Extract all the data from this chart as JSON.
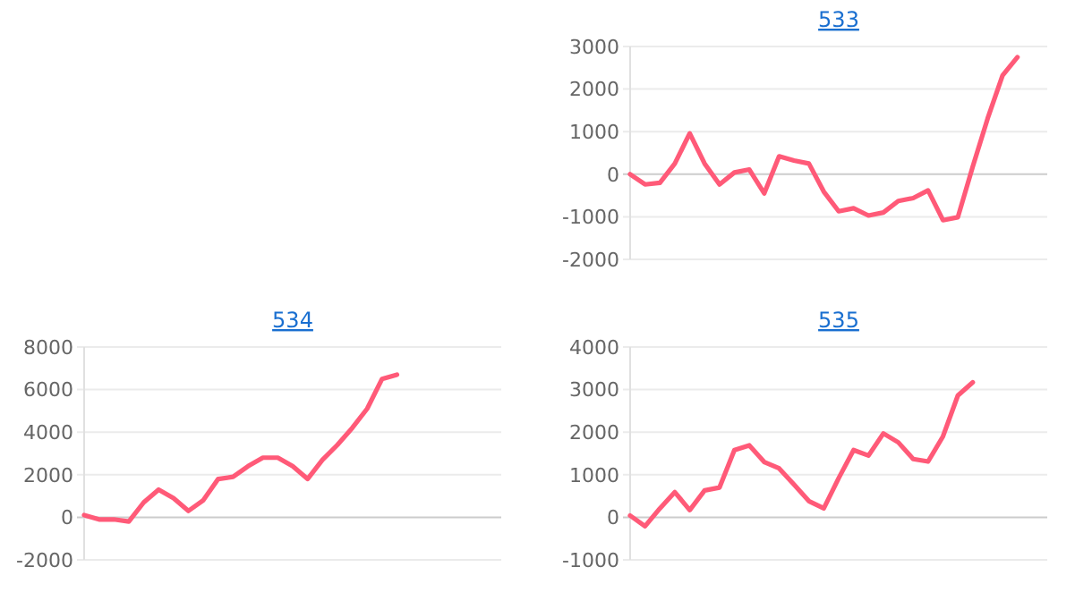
{
  "chart_data": [
    {
      "type": "line",
      "title": "533",
      "categories": [
        null,
        null,
        null,
        null,
        null,
        null,
        null,
        null,
        null,
        null,
        null,
        null,
        null,
        null,
        null,
        null,
        null,
        null,
        null,
        null,
        null,
        null,
        null,
        null,
        null,
        null,
        null,
        null,
        null
      ],
      "series": [
        {
          "color": "#ff5a78",
          "values": [
            0,
            -240,
            -200,
            250,
            960,
            250,
            -240,
            40,
            110,
            -450,
            420,
            320,
            250,
            -410,
            -870,
            -800,
            -970,
            -900,
            -630,
            -560,
            -380,
            -1080,
            -1010,
            180,
            1310,
            2320,
            2750,
            null,
            null
          ]
        }
      ],
      "ylim": [
        -2000,
        3000
      ],
      "yticks": [
        -2000,
        -1000,
        0,
        1000,
        2000,
        3000
      ],
      "grid": "y",
      "marker": "none",
      "line_style": "solid"
    },
    {
      "type": "line",
      "title": "534",
      "categories": [
        null,
        null,
        null,
        null,
        null,
        null,
        null,
        null,
        null,
        null,
        null,
        null,
        null,
        null,
        null,
        null,
        null,
        null,
        null,
        null,
        null,
        null,
        null,
        null,
        null,
        null,
        null,
        null,
        null
      ],
      "series": [
        {
          "color": "#ff5a78",
          "values": [
            100,
            -100,
            -100,
            -200,
            700,
            1300,
            900,
            300,
            800,
            1800,
            1900,
            2400,
            2800,
            2800,
            2400,
            1800,
            2700,
            3400,
            4200,
            5100,
            6500,
            6700,
            null,
            null,
            null,
            null,
            null,
            null,
            null
          ]
        }
      ],
      "ylim": [
        -2000,
        8000
      ],
      "yticks": [
        -2000,
        0,
        2000,
        4000,
        6000,
        8000
      ],
      "grid": "y",
      "marker": "none",
      "line_style": "solid"
    },
    {
      "type": "line",
      "title": "535",
      "categories": [
        null,
        null,
        null,
        null,
        null,
        null,
        null,
        null,
        null,
        null,
        null,
        null,
        null,
        null,
        null,
        null,
        null,
        null,
        null,
        null,
        null,
        null,
        null,
        null,
        null,
        null,
        null,
        null,
        null
      ],
      "series": [
        {
          "color": "#ff5a78",
          "values": [
            40,
            -210,
            210,
            590,
            170,
            630,
            700,
            1580,
            1690,
            1300,
            1150,
            770,
            380,
            210,
            920,
            1580,
            1450,
            1970,
            1760,
            1370,
            1310,
            1900,
            2860,
            3170,
            null,
            null,
            null,
            null,
            null
          ]
        }
      ],
      "ylim": [
        -1000,
        4000
      ],
      "yticks": [
        -1000,
        0,
        1000,
        2000,
        3000,
        4000
      ],
      "grid": "y",
      "marker": "none",
      "line_style": "solid"
    }
  ]
}
